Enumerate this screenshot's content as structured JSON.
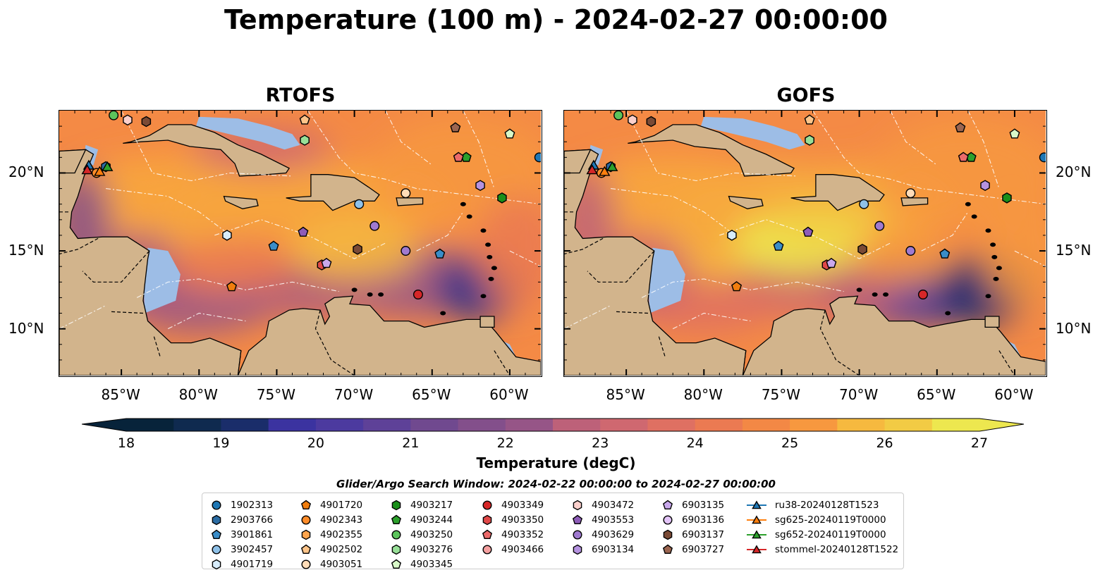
{
  "title": "Temperature (100 m) - 2024-02-27 00:00:00",
  "panels": [
    {
      "title": "RTOFS"
    },
    {
      "title": "GOFS"
    }
  ],
  "axes": {
    "x_ticks": [
      "85°W",
      "80°W",
      "75°W",
      "70°W",
      "65°W",
      "60°W"
    ],
    "x_values": [
      -85,
      -80,
      -75,
      -70,
      -65,
      -60
    ],
    "y_ticks": [
      "20°N",
      "15°N",
      "10°N"
    ],
    "y_values": [
      20,
      15,
      10
    ],
    "lon_range": [
      -89,
      -58
    ],
    "lat_range": [
      7,
      24
    ]
  },
  "colorbar": {
    "label": "Temperature (degC)",
    "ticks": [
      "18",
      "19",
      "20",
      "21",
      "22",
      "23",
      "24",
      "25",
      "26",
      "27"
    ],
    "range": [
      18,
      27
    ],
    "extend": "both",
    "colors": [
      "#07233a",
      "#0f2a4f",
      "#1a2d6a",
      "#2a308a",
      "#3b33a0",
      "#4c3a9f",
      "#5e4198",
      "#70498f",
      "#834f8b",
      "#965587",
      "#aa5b80",
      "#bd6179",
      "#cf6870",
      "#df7062",
      "#eb7a52",
      "#f38845",
      "#f7983f",
      "#f8a83d",
      "#f6b93f",
      "#f2cb44",
      "#ede74f"
    ],
    "land_color": "#d2b48c",
    "shallow_color": "#9dbde6",
    "deep_pacific_color": "#07233a"
  },
  "legend": {
    "title": "Glider/Argo Search Window: 2024-02-22 00:00:00 to 2024-02-27 00:00:00",
    "items": [
      {
        "label": "1902313",
        "marker": "circle",
        "color": "#1f77b4"
      },
      {
        "label": "2903766",
        "marker": "hexagon",
        "color": "#2b6ca3"
      },
      {
        "label": "3901861",
        "marker": "pentagon",
        "color": "#3a8dc8"
      },
      {
        "label": "3902457",
        "marker": "circle",
        "color": "#8fc1e8"
      },
      {
        "label": "4901719",
        "marker": "hexagon",
        "color": "#d7ecfb"
      },
      {
        "label": "4901720",
        "marker": "pentagon",
        "color": "#f07d0e"
      },
      {
        "label": "4902343",
        "marker": "circle",
        "color": "#ff8c2a"
      },
      {
        "label": "4902355",
        "marker": "hexagon",
        "color": "#ffa54d"
      },
      {
        "label": "4902502",
        "marker": "pentagon",
        "color": "#ffc58a"
      },
      {
        "label": "4903051",
        "marker": "circle",
        "color": "#ffdcb8"
      },
      {
        "label": "4903217",
        "marker": "hexagon",
        "color": "#1a8f1a"
      },
      {
        "label": "4903244",
        "marker": "pentagon",
        "color": "#2ca02c"
      },
      {
        "label": "4903250",
        "marker": "circle",
        "color": "#5cc45c"
      },
      {
        "label": "4903276",
        "marker": "hexagon",
        "color": "#98e098"
      },
      {
        "label": "4903345",
        "marker": "pentagon",
        "color": "#d8f8c8"
      },
      {
        "label": "4903349",
        "marker": "circle",
        "color": "#d62728"
      },
      {
        "label": "4903350",
        "marker": "hexagon",
        "color": "#e04848"
      },
      {
        "label": "4903352",
        "marker": "pentagon",
        "color": "#ec6a6a"
      },
      {
        "label": "4903466",
        "marker": "circle",
        "color": "#f5a0a0"
      },
      {
        "label": "4903472",
        "marker": "hexagon",
        "color": "#fbd0cc"
      },
      {
        "label": "4903553",
        "marker": "pentagon",
        "color": "#8e5cb8"
      },
      {
        "label": "4903629",
        "marker": "circle",
        "color": "#a07ad0"
      },
      {
        "label": "6903134",
        "marker": "hexagon",
        "color": "#b592e0"
      },
      {
        "label": "6903135",
        "marker": "pentagon",
        "color": "#c9a8ec"
      },
      {
        "label": "6903136",
        "marker": "circle",
        "color": "#e3c4f8"
      },
      {
        "label": "6903137",
        "marker": "hexagon",
        "color": "#7a4a35"
      },
      {
        "label": "6903727",
        "marker": "pentagon",
        "color": "#9b6550"
      },
      {
        "label": "ru38-20240128T1523",
        "marker": "triangle",
        "color": "#1f77b4"
      },
      {
        "label": "sg625-20240119T0000",
        "marker": "triangle",
        "color": "#ff7f0e"
      },
      {
        "label": "sg652-20240119T0000",
        "marker": "triangle",
        "color": "#2ca02c"
      },
      {
        "label": "stommel-20240128T1522",
        "marker": "triangle",
        "color": "#d62728"
      }
    ]
  },
  "observations": [
    {
      "id": "1902313",
      "lon": -58.1,
      "lat": 21.0
    },
    {
      "id": "2903766",
      "lon": -86.0,
      "lat": 20.4
    },
    {
      "id": "3901861",
      "lon": -64.5,
      "lat": 14.8
    },
    {
      "id": "3901861",
      "lon": -75.2,
      "lat": 15.3
    },
    {
      "id": "3902457",
      "lon": -69.7,
      "lat": 18.0
    },
    {
      "id": "4901719",
      "lon": -78.2,
      "lat": 16.0
    },
    {
      "id": "4901720",
      "lon": -77.9,
      "lat": 12.7
    },
    {
      "id": "4902343",
      "lon": -86.6,
      "lat": 20.0
    },
    {
      "id": "4902502",
      "lon": -73.2,
      "lat": 23.4
    },
    {
      "id": "4903051",
      "lon": -66.7,
      "lat": 18.7
    },
    {
      "id": "4903217",
      "lon": -60.5,
      "lat": 18.4
    },
    {
      "id": "4903244",
      "lon": -62.8,
      "lat": 21.0
    },
    {
      "id": "4903250",
      "lon": -85.5,
      "lat": 23.7
    },
    {
      "id": "4903276",
      "lon": -73.2,
      "lat": 22.1
    },
    {
      "id": "4903345",
      "lon": -60.0,
      "lat": 22.5
    },
    {
      "id": "4903349",
      "lon": -65.9,
      "lat": 12.2
    },
    {
      "id": "4903350",
      "lon": -72.1,
      "lat": 14.1
    },
    {
      "id": "4903352",
      "lon": -63.3,
      "lat": 21.0
    },
    {
      "id": "4903472",
      "lon": -84.6,
      "lat": 23.4
    },
    {
      "id": "4903553",
      "lon": -73.3,
      "lat": 16.2
    },
    {
      "id": "4903629",
      "lon": -68.7,
      "lat": 16.6
    },
    {
      "id": "4903629",
      "lon": -66.7,
      "lat": 15.0
    },
    {
      "id": "6903134",
      "lon": -61.9,
      "lat": 19.2
    },
    {
      "id": "6903135",
      "lon": -71.8,
      "lat": 14.2
    },
    {
      "id": "6903137",
      "lon": -69.8,
      "lat": 15.1
    },
    {
      "id": "6903137",
      "lon": -83.4,
      "lat": 23.3
    },
    {
      "id": "6903727",
      "lon": -63.5,
      "lat": 22.9
    }
  ],
  "gliders": [
    {
      "id": "ru38-20240128T1523",
      "lon": -87.1,
      "lat": 20.5
    },
    {
      "id": "sg625-20240119T0000",
      "lon": -86.4,
      "lat": 20.1
    },
    {
      "id": "sg652-20240119T0000",
      "lon": -85.9,
      "lat": 20.4
    },
    {
      "id": "stommel-20240128T1522",
      "lon": -87.2,
      "lat": 20.2
    }
  ]
}
